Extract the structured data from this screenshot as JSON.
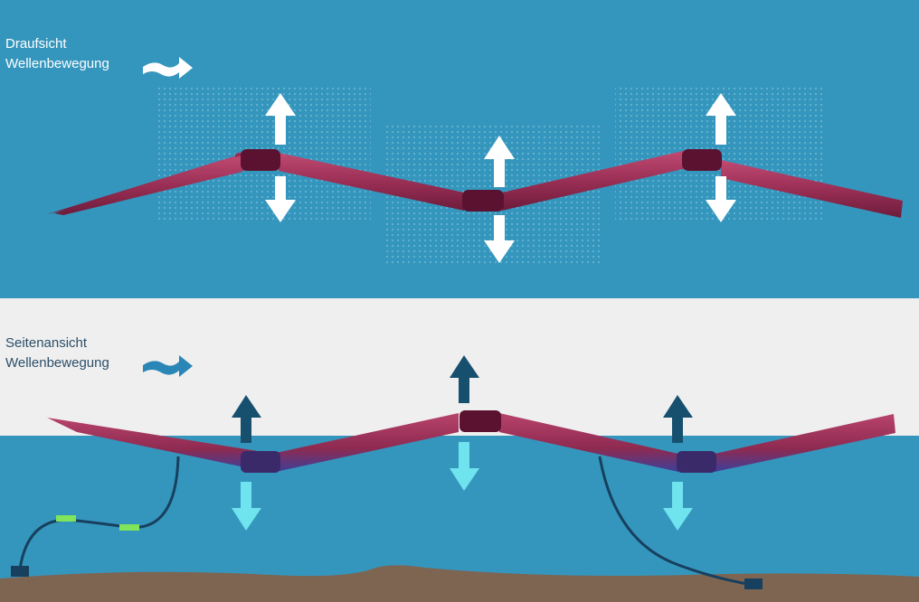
{
  "top_view": {
    "title": "Draufsicht",
    "subtitle": "Wellenbewegung"
  },
  "side_view": {
    "title": "Seitenansicht",
    "subtitle": "Wellenbewegung"
  },
  "colors": {
    "water": "#3596bd",
    "sky": "#efefef",
    "seabed": "#7d6552",
    "tube": "#9a2f55",
    "joint": "#5a1230",
    "arrow_white": "#ffffff",
    "arrow_dark": "#17506e",
    "arrow_light": "#6fe3ee",
    "mooring_float": "#7fe55a"
  }
}
